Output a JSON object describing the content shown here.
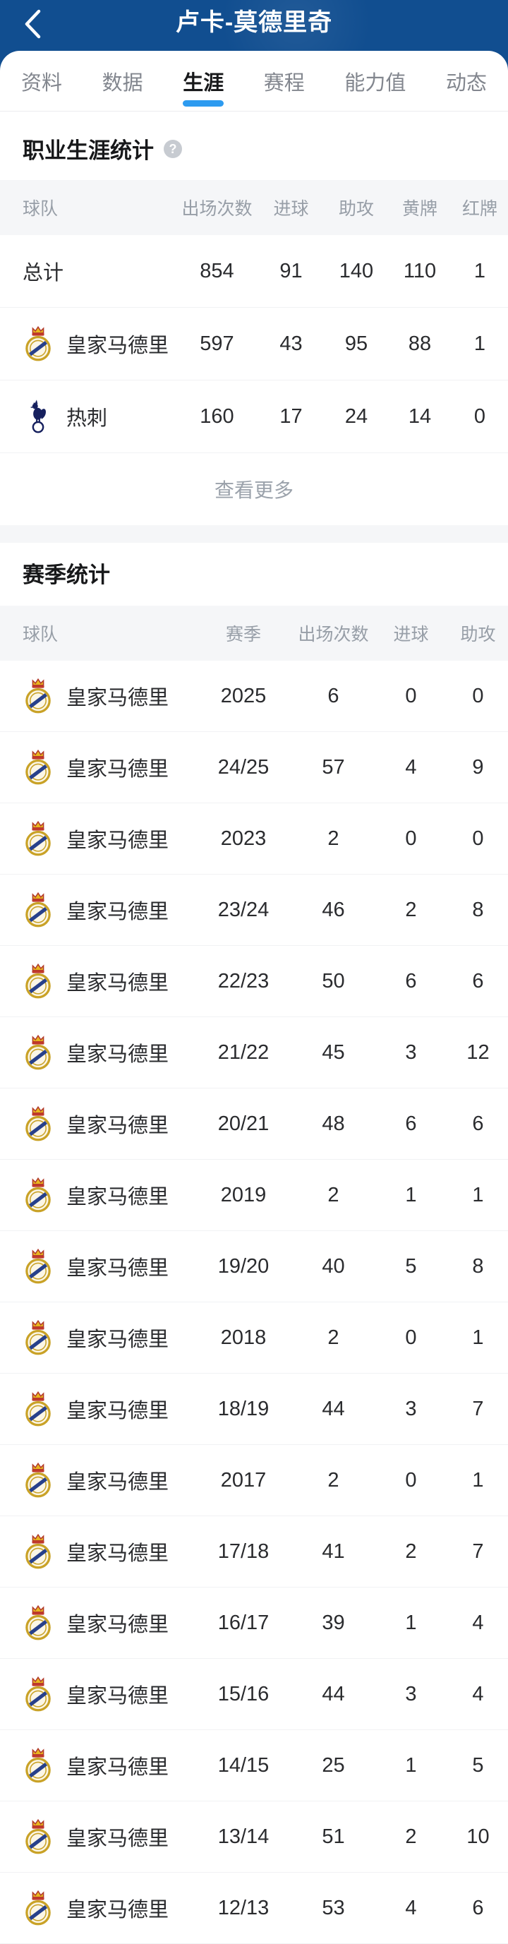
{
  "header": {
    "title": "卢卡-莫德里奇"
  },
  "tabs": [
    {
      "key": "profile",
      "label": "资料",
      "active": false
    },
    {
      "key": "data",
      "label": "数据",
      "active": false
    },
    {
      "key": "career",
      "label": "生涯",
      "active": true
    },
    {
      "key": "schedule",
      "label": "赛程",
      "active": false
    },
    {
      "key": "rating",
      "label": "能力值",
      "active": false
    },
    {
      "key": "news",
      "label": "动态",
      "active": false
    }
  ],
  "career_section": {
    "title": "职业生涯统计",
    "help_icon": "question-mark",
    "columns": [
      "球队",
      "出场次数",
      "进球",
      "助攻",
      "黄牌",
      "红牌"
    ],
    "rows": [
      {
        "team": "总计",
        "icon": null,
        "values": [
          "854",
          "91",
          "140",
          "110",
          "1"
        ]
      },
      {
        "team": "皇家马德里",
        "icon": "real-madrid-crest",
        "values": [
          "597",
          "43",
          "95",
          "88",
          "1"
        ]
      },
      {
        "team": "热刺",
        "icon": "tottenham-crest",
        "values": [
          "160",
          "17",
          "24",
          "14",
          "0"
        ]
      }
    ],
    "more_label": "查看更多"
  },
  "season_section": {
    "title": "赛季统计",
    "columns": [
      "球队",
      "赛季",
      "出场次数",
      "进球",
      "助攻"
    ],
    "rows": [
      {
        "team": "皇家马德里",
        "icon": "real-madrid-crest",
        "season": "2025",
        "values": [
          "6",
          "0",
          "0"
        ]
      },
      {
        "team": "皇家马德里",
        "icon": "real-madrid-crest",
        "season": "24/25",
        "values": [
          "57",
          "4",
          "9"
        ]
      },
      {
        "team": "皇家马德里",
        "icon": "real-madrid-crest",
        "season": "2023",
        "values": [
          "2",
          "0",
          "0"
        ]
      },
      {
        "team": "皇家马德里",
        "icon": "real-madrid-crest",
        "season": "23/24",
        "values": [
          "46",
          "2",
          "8"
        ]
      },
      {
        "team": "皇家马德里",
        "icon": "real-madrid-crest",
        "season": "22/23",
        "values": [
          "50",
          "6",
          "6"
        ]
      },
      {
        "team": "皇家马德里",
        "icon": "real-madrid-crest",
        "season": "21/22",
        "values": [
          "45",
          "3",
          "12"
        ]
      },
      {
        "team": "皇家马德里",
        "icon": "real-madrid-crest",
        "season": "20/21",
        "values": [
          "48",
          "6",
          "6"
        ]
      },
      {
        "team": "皇家马德里",
        "icon": "real-madrid-crest",
        "season": "2019",
        "values": [
          "2",
          "1",
          "1"
        ]
      },
      {
        "team": "皇家马德里",
        "icon": "real-madrid-crest",
        "season": "19/20",
        "values": [
          "40",
          "5",
          "8"
        ]
      },
      {
        "team": "皇家马德里",
        "icon": "real-madrid-crest",
        "season": "2018",
        "values": [
          "2",
          "0",
          "1"
        ]
      },
      {
        "team": "皇家马德里",
        "icon": "real-madrid-crest",
        "season": "18/19",
        "values": [
          "44",
          "3",
          "7"
        ]
      },
      {
        "team": "皇家马德里",
        "icon": "real-madrid-crest",
        "season": "2017",
        "values": [
          "2",
          "0",
          "1"
        ]
      },
      {
        "team": "皇家马德里",
        "icon": "real-madrid-crest",
        "season": "17/18",
        "values": [
          "41",
          "2",
          "7"
        ]
      },
      {
        "team": "皇家马德里",
        "icon": "real-madrid-crest",
        "season": "16/17",
        "values": [
          "39",
          "1",
          "4"
        ]
      },
      {
        "team": "皇家马德里",
        "icon": "real-madrid-crest",
        "season": "15/16",
        "values": [
          "44",
          "3",
          "4"
        ]
      },
      {
        "team": "皇家马德里",
        "icon": "real-madrid-crest",
        "season": "14/15",
        "values": [
          "25",
          "1",
          "5"
        ]
      },
      {
        "team": "皇家马德里",
        "icon": "real-madrid-crest",
        "season": "13/14",
        "values": [
          "51",
          "2",
          "10"
        ]
      },
      {
        "team": "皇家马德里",
        "icon": "real-madrid-crest",
        "season": "12/13",
        "values": [
          "53",
          "4",
          "6"
        ]
      }
    ]
  },
  "colors": {
    "appbar_bg": "#114e90",
    "accent_tab_underline": "#2d9bf0",
    "thead_bg": "#f5f6f8",
    "text_primary": "#2a2b2e",
    "text_muted": "#979ea7"
  }
}
